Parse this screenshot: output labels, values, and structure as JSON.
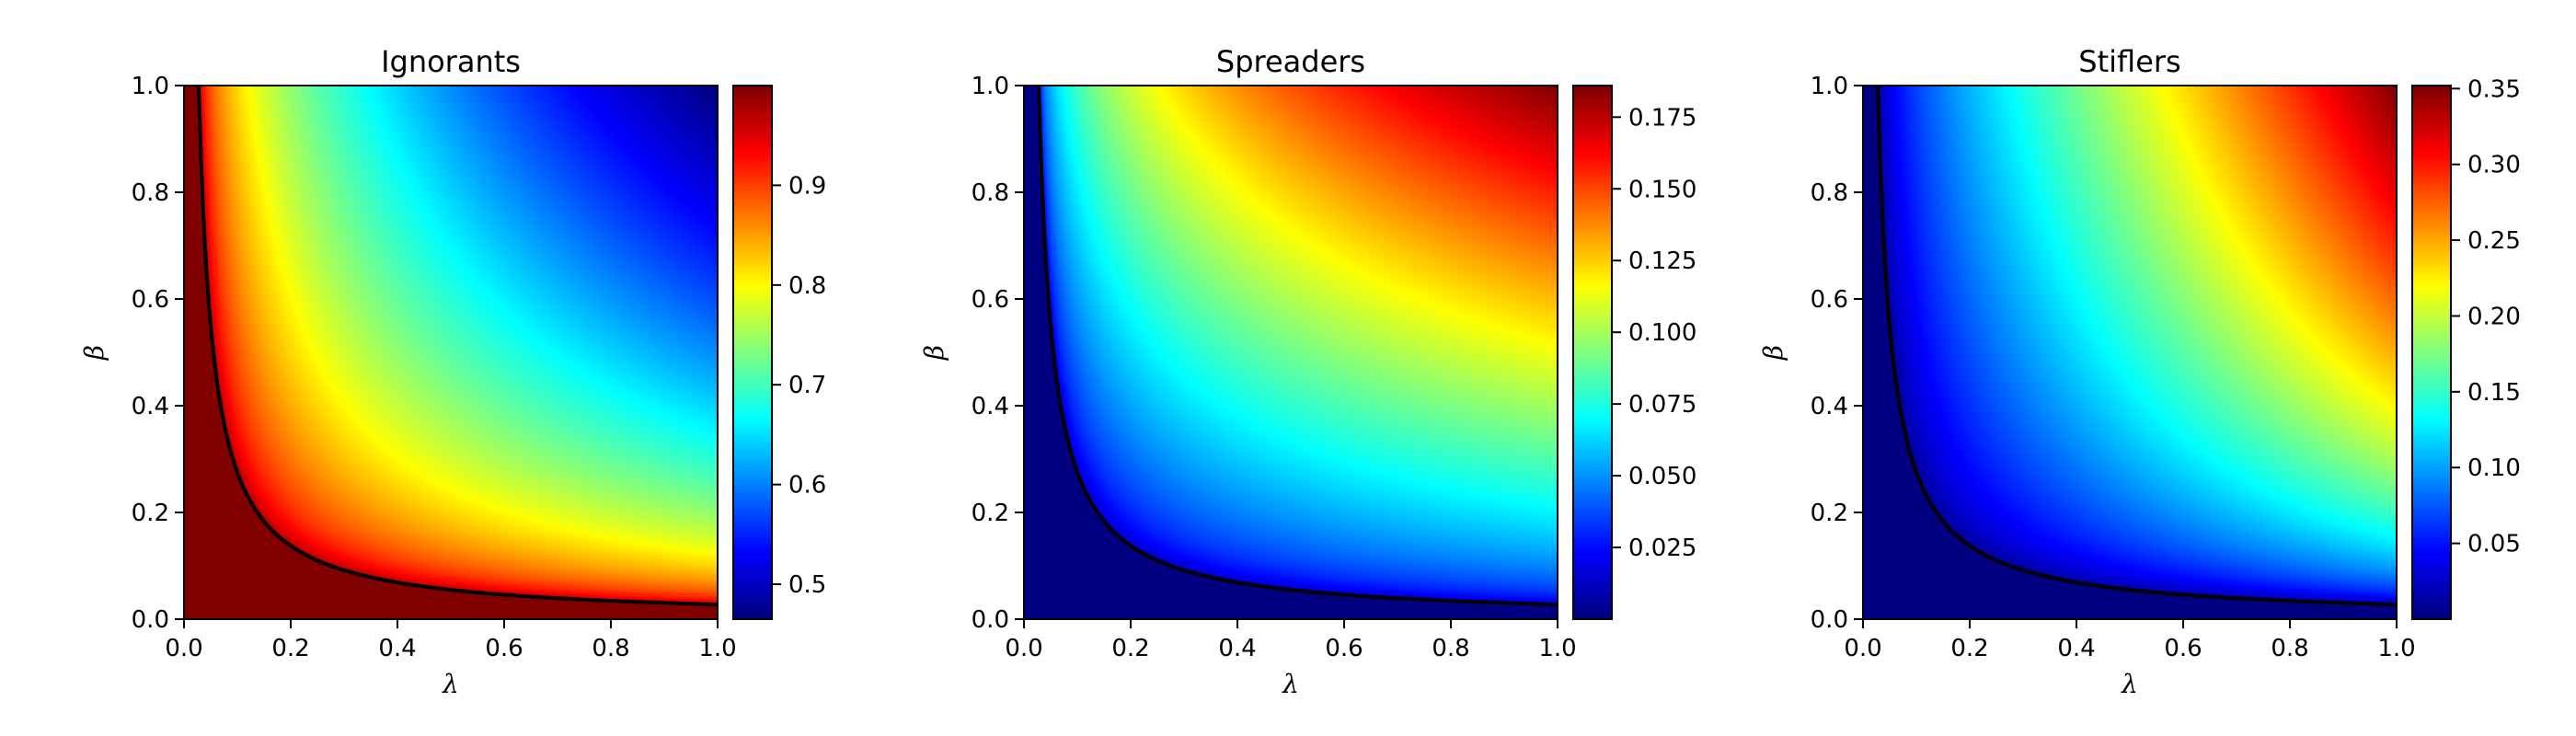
{
  "chart_data": [
    {
      "type": "heatmap",
      "title": "Ignorants",
      "xlabel": "λ",
      "ylabel": "β",
      "xlim": [
        0.0,
        1.0
      ],
      "ylim": [
        0.0,
        1.0
      ],
      "x_ticks": [
        "0.0",
        "0.2",
        "0.4",
        "0.6",
        "0.8",
        "1.0"
      ],
      "y_ticks": [
        "0.0",
        "0.2",
        "0.4",
        "0.6",
        "0.8",
        "1.0"
      ],
      "colormap": "jet",
      "colorbar_range": [
        0.465,
        1.0
      ],
      "colorbar_ticks": [
        "0.5",
        "0.6",
        "0.7",
        "0.8",
        "0.9"
      ],
      "colorbar_tick_values": [
        0.5,
        0.6,
        0.7,
        0.8,
        0.9
      ],
      "threshold_curve": {
        "color": "#000000",
        "lambda_beta_product": 0.0275
      },
      "grid": false
    },
    {
      "type": "heatmap",
      "title": "Spreaders",
      "xlabel": "λ",
      "ylabel": "β",
      "xlim": [
        0.0,
        1.0
      ],
      "ylim": [
        0.0,
        1.0
      ],
      "x_ticks": [
        "0.0",
        "0.2",
        "0.4",
        "0.6",
        "0.8",
        "1.0"
      ],
      "y_ticks": [
        "0.0",
        "0.2",
        "0.4",
        "0.6",
        "0.8",
        "1.0"
      ],
      "colormap": "jet",
      "colorbar_range": [
        0.0,
        0.186
      ],
      "colorbar_ticks": [
        "0.025",
        "0.050",
        "0.075",
        "0.100",
        "0.125",
        "0.150",
        "0.175"
      ],
      "colorbar_tick_values": [
        0.025,
        0.05,
        0.075,
        0.1,
        0.125,
        0.15,
        0.175
      ],
      "threshold_curve": {
        "color": "#000000",
        "lambda_beta_product": 0.0275
      },
      "grid": false
    },
    {
      "type": "heatmap",
      "title": "Stiflers",
      "xlabel": "λ",
      "ylabel": "β",
      "xlim": [
        0.0,
        1.0
      ],
      "ylim": [
        0.0,
        1.0
      ],
      "x_ticks": [
        "0.0",
        "0.2",
        "0.4",
        "0.6",
        "0.8",
        "1.0"
      ],
      "y_ticks": [
        "0.0",
        "0.2",
        "0.4",
        "0.6",
        "0.8",
        "1.0"
      ],
      "colormap": "jet",
      "colorbar_range": [
        0.0,
        0.352
      ],
      "colorbar_ticks": [
        "0.05",
        "0.10",
        "0.15",
        "0.20",
        "0.25",
        "0.30",
        "0.35"
      ],
      "colorbar_tick_values": [
        0.05,
        0.1,
        0.15,
        0.2,
        0.25,
        0.3,
        0.35
      ],
      "threshold_curve": {
        "color": "#000000",
        "lambda_beta_product": 0.0275
      },
      "grid": false
    }
  ]
}
